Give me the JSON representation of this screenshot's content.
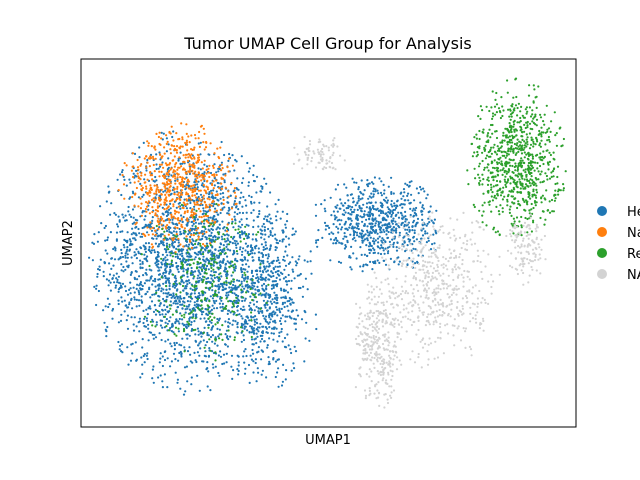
{
  "chart_data": {
    "type": "scatter",
    "title": "Tumor UMAP Cell Group for Analysis",
    "xlabel": "UMAP1",
    "ylabel": "UMAP2",
    "xticks": [],
    "yticks": [],
    "grid": false,
    "legend_position": "right, outside plot (clipped)",
    "legend": [
      {
        "label": "He",
        "color": "#1f77b4"
      },
      {
        "label": "Na",
        "color": "#ff7f0e"
      },
      {
        "label": "Re",
        "color": "#2ca02c"
      },
      {
        "label": "NA",
        "color": "#d3d3d3"
      }
    ],
    "xlim": [
      0,
      100
    ],
    "ylim": [
      0,
      100
    ],
    "series": [
      {
        "name": "He",
        "color": "#1f77b4",
        "clusters": [
          {
            "cx": 22,
            "cy": 45,
            "rx": 18,
            "ry": 32,
            "n": 2200
          },
          {
            "cx": 38,
            "cy": 35,
            "rx": 9,
            "ry": 22,
            "n": 500
          },
          {
            "cx": 60,
            "cy": 55,
            "rx": 12,
            "ry": 12,
            "n": 700
          }
        ]
      },
      {
        "name": "Na",
        "color": "#ff7f0e",
        "clusters": [
          {
            "cx": 20,
            "cy": 65,
            "rx": 11,
            "ry": 16,
            "n": 650
          }
        ]
      },
      {
        "name": "Re",
        "color": "#2ca02c",
        "clusters": [
          {
            "cx": 88,
            "cy": 72,
            "rx": 9,
            "ry": 20,
            "n": 800
          },
          {
            "cx": 25,
            "cy": 40,
            "rx": 12,
            "ry": 20,
            "n": 280
          }
        ]
      },
      {
        "name": "NA",
        "color": "#d3d3d3",
        "clusters": [
          {
            "cx": 72,
            "cy": 38,
            "rx": 12,
            "ry": 20,
            "n": 500
          },
          {
            "cx": 60,
            "cy": 22,
            "rx": 5,
            "ry": 16,
            "n": 300
          },
          {
            "cx": 48,
            "cy": 74,
            "rx": 5,
            "ry": 5,
            "n": 80
          },
          {
            "cx": 90,
            "cy": 48,
            "rx": 4,
            "ry": 9,
            "n": 120
          }
        ]
      }
    ]
  }
}
